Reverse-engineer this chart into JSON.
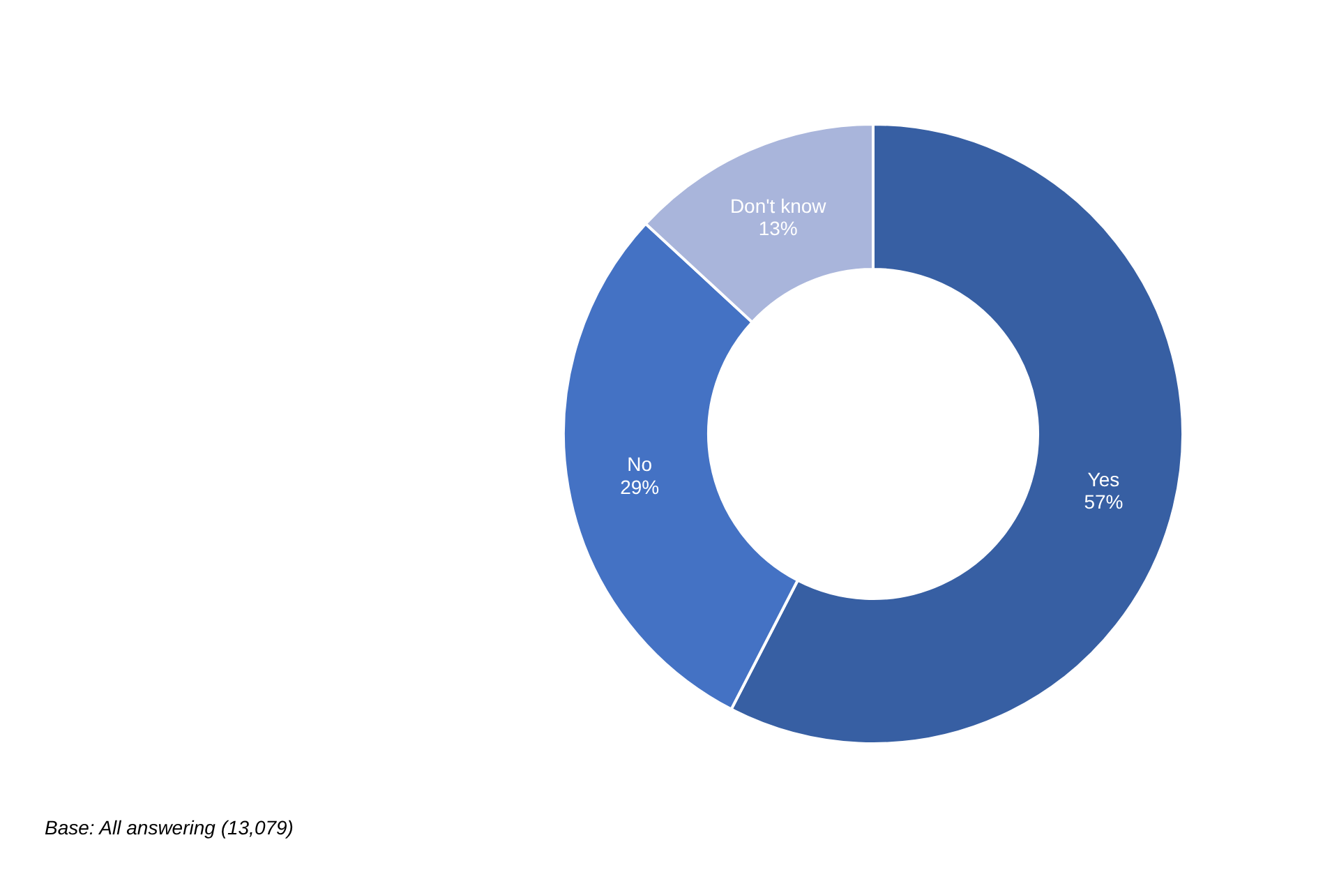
{
  "chart_data": {
    "type": "donut",
    "categories": [
      "Yes",
      "No",
      "Don't know"
    ],
    "values": [
      57,
      29,
      13
    ],
    "value_labels": [
      "57%",
      "29%",
      "13%"
    ],
    "colors": [
      "#375fa3",
      "#4472c4",
      "#a9b5db"
    ],
    "annotations": [
      "Base: All answering (13,079)"
    ]
  }
}
